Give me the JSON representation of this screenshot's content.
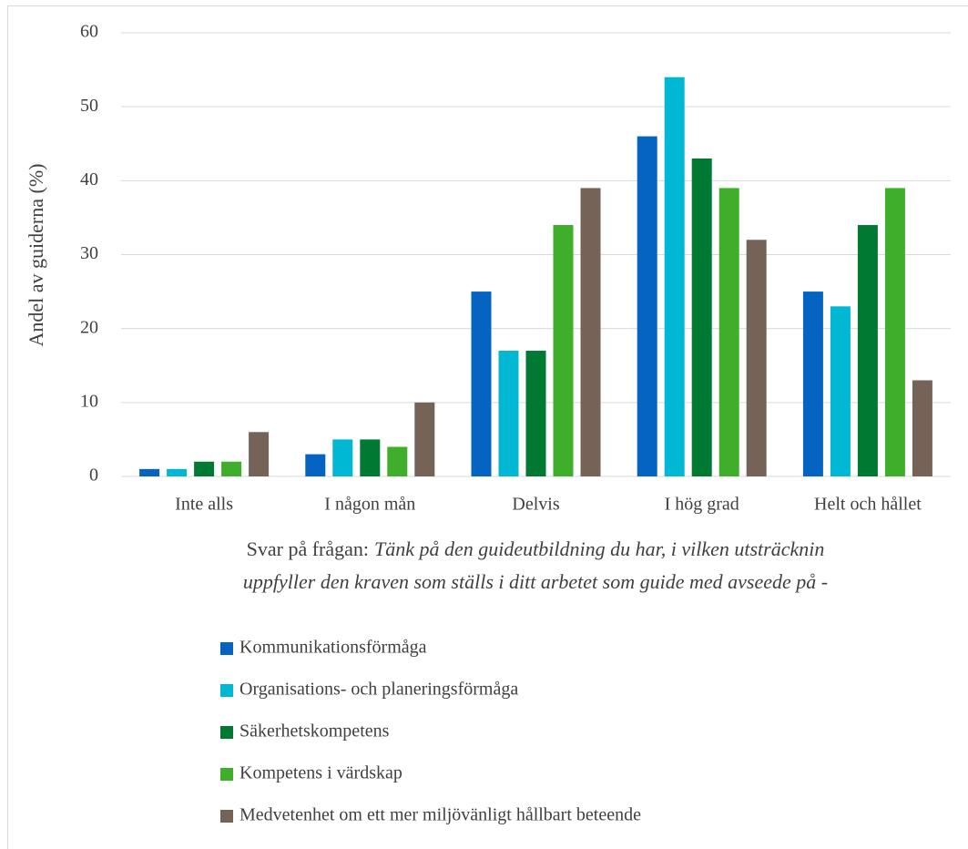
{
  "chart_data": {
    "type": "bar",
    "ylabel": "Andel av guiderna (%)",
    "xlabel": {
      "prefix": "Svar på frågan:",
      "lines": [
        "Tänk på den guideutbildning du har, i vilken utsträcknin",
        "uppfyller den kraven som ställs i ditt arbetet som guide med avseede på -"
      ]
    },
    "categories": [
      "Inte alls",
      "I någon mån",
      "Delvis",
      "I hög grad",
      "Helt och hållet"
    ],
    "series": [
      {
        "name": "Kommunikationsförmåga",
        "color": "#0563c1",
        "values": [
          1,
          3,
          25,
          46,
          25
        ]
      },
      {
        "name": "Organisations- och planeringsförmåga",
        "color": "#00b7d4",
        "values": [
          1,
          5,
          17,
          54,
          23
        ]
      },
      {
        "name": "Säkerhetskompetens",
        "color": "#007a33",
        "values": [
          2,
          5,
          17,
          43,
          34
        ]
      },
      {
        "name": "Kompetens i värdskap",
        "color": "#3fae2a",
        "values": [
          2,
          4,
          34,
          39,
          39
        ]
      },
      {
        "name": "Medvetenhet om ett mer miljövänligt hållbart beteende",
        "color": "#766357",
        "values": [
          6,
          10,
          39,
          32,
          13
        ]
      }
    ],
    "ylim": [
      0,
      60
    ],
    "yticks": [
      0,
      10,
      20,
      30,
      40,
      50,
      60
    ],
    "grid": true,
    "legend": "bottom"
  }
}
